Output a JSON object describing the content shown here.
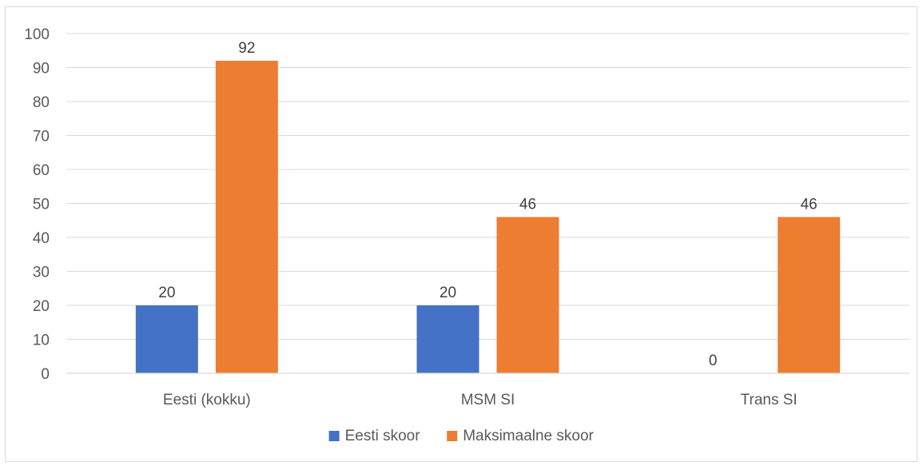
{
  "chart_data": {
    "type": "bar",
    "title": "",
    "xlabel": "",
    "ylabel": "",
    "ylim": [
      0,
      100
    ],
    "yticks": [
      0,
      10,
      20,
      30,
      40,
      50,
      60,
      70,
      80,
      90,
      100
    ],
    "grid": true,
    "legend_position": "bottom",
    "categories": [
      "Eesti (kokku)",
      "MSM SI",
      "Trans SI"
    ],
    "series": [
      {
        "name": "Eesti skoor",
        "color": "#4472c4",
        "values": [
          20,
          20,
          0
        ]
      },
      {
        "name": "Maksimaalne skoor",
        "color": "#ed7d31",
        "values": [
          92,
          46,
          46
        ]
      }
    ],
    "data_labels": true
  }
}
